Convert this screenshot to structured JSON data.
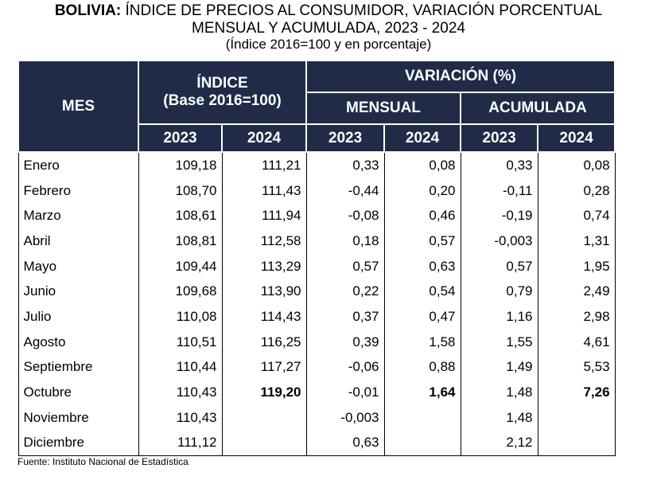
{
  "title": {
    "country": "BOLIVIA:",
    "line1": "ÍNDICE DE PRECIOS AL CONSUMIDOR, VARIACIÓN PORCENTUAL",
    "line2": "MENSUAL Y ACUMULADA, 2023 - 2024",
    "line3": "(Índice 2016=100 y en porcentaje)"
  },
  "header": {
    "mes": "MES",
    "indice": "ÍNDICE",
    "indice_base": "(Base 2016=100)",
    "variacion": "VARIACIÓN (%)",
    "mensual": "MENSUAL",
    "acumulada": "ACUMULADA",
    "years": [
      "2023",
      "2024",
      "2023",
      "2024",
      "2023",
      "2024"
    ]
  },
  "table": {
    "rows": [
      [
        "Enero",
        "109,18",
        "111,21",
        "0,33",
        "0,08",
        "0,33",
        "0,08"
      ],
      [
        "Febrero",
        "108,70",
        "111,43",
        "-0,44",
        "0,20",
        "-0,11",
        "0,28"
      ],
      [
        "Marzo",
        "108,61",
        "111,94",
        "-0,08",
        "0,46",
        "-0,19",
        "0,74"
      ],
      [
        "Abril",
        "108,81",
        "112,58",
        "0,18",
        "0,57",
        "-0,003",
        "1,31"
      ],
      [
        "Mayo",
        "109,44",
        "113,29",
        "0,57",
        "0,63",
        "0,57",
        "1,95"
      ],
      [
        "Junio",
        "109,68",
        "113,90",
        "0,22",
        "0,54",
        "0,79",
        "2,49"
      ],
      [
        "Julio",
        "110,08",
        "114,43",
        "0,37",
        "0,47",
        "1,16",
        "2,98"
      ],
      [
        "Agosto",
        "110,51",
        "116,25",
        "0,39",
        "1,58",
        "1,55",
        "4,61"
      ],
      [
        "Septiembre",
        "110,44",
        "117,27",
        "-0,06",
        "0,88",
        "1,49",
        "5,53"
      ],
      [
        "Octubre",
        "110,43",
        "119,20",
        "-0,01",
        "1,64",
        "1,48",
        "7,26"
      ],
      [
        "Noviembre",
        "110,43",
        null,
        "-0,003",
        null,
        "1,48",
        null
      ],
      [
        "Diciembre",
        "111,12",
        null,
        "0,63",
        null,
        "2,12",
        null
      ]
    ],
    "bold_row": 9
  },
  "footer": {
    "source": "Fuente: Instituto Nacional de Estadística"
  }
}
